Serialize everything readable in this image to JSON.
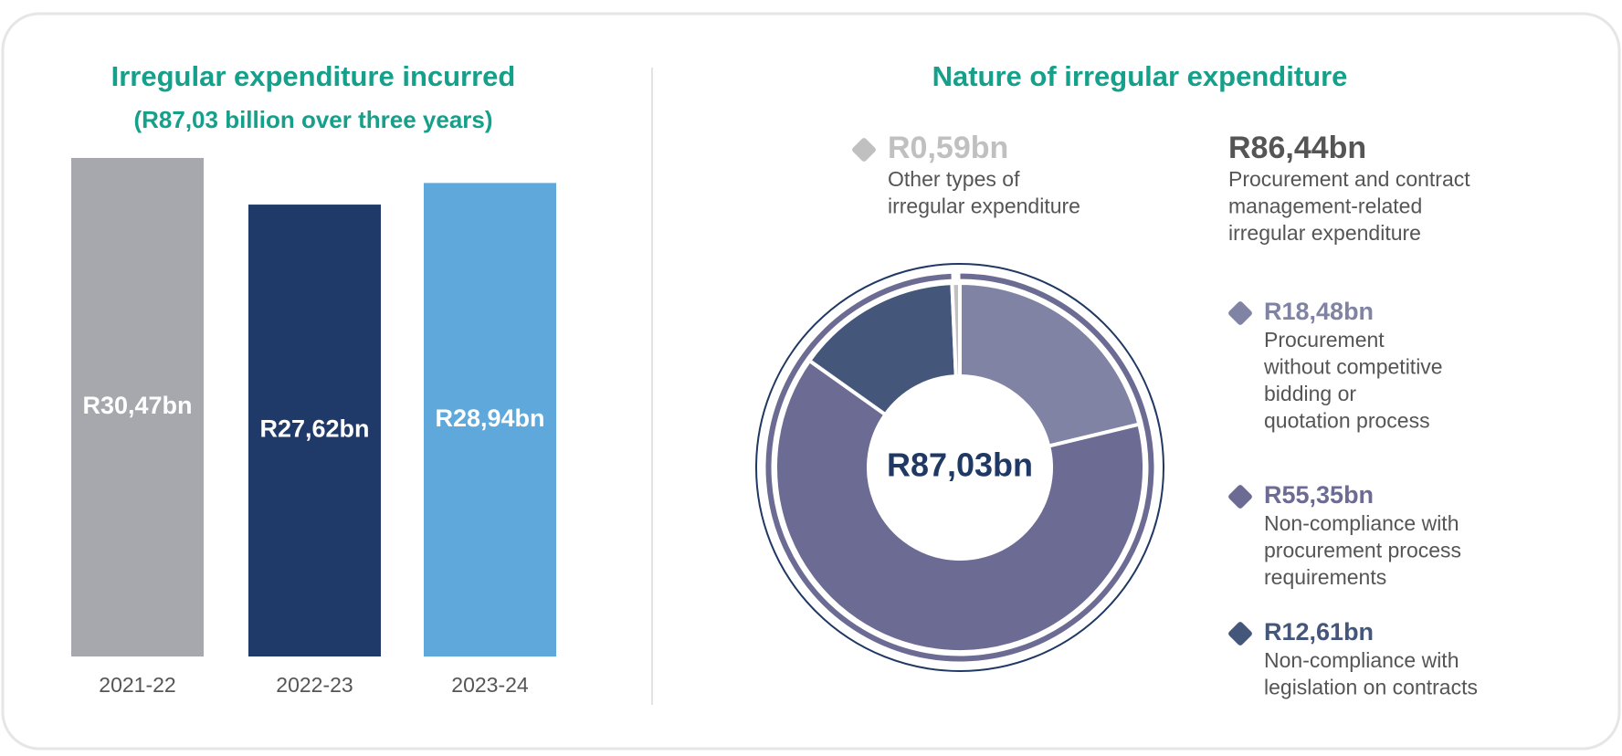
{
  "chart_data": [
    {
      "type": "bar",
      "title": "Irregular expenditure incurred",
      "subtitle": "(R87,03 billion over three years)",
      "categories": [
        "2021-22",
        "2022-23",
        "2023-24"
      ],
      "values": [
        30.47,
        27.62,
        28.94
      ],
      "value_labels": [
        "R30,47bn",
        "R27,62bn",
        "R28,94bn"
      ],
      "colors": [
        "#a7a8ad",
        "#1f3a68",
        "#5ea8dc"
      ]
    },
    {
      "type": "donut",
      "title": "Nature of irregular expenditure",
      "total": 87.03,
      "total_label": "R87,03bn",
      "values": [
        18.48,
        55.35,
        12.61,
        0.59
      ],
      "value_labels": [
        "R18,48bn",
        "R55,35bn",
        "R12,61bn",
        "R0,59bn"
      ],
      "descriptions": [
        [
          "Procurement",
          "without competitive",
          "bidding or",
          "quotation process"
        ],
        [
          "Non-compliance with",
          "procurement process",
          "requirements"
        ],
        [
          "Non-compliance with",
          "legislation on contracts"
        ],
        [
          "Other types of",
          "irregular expenditure"
        ]
      ],
      "colors": [
        "#8083a3",
        "#6b6b94",
        "#44567a",
        "#c0c0c0"
      ],
      "group": {
        "value": 86.44,
        "label": "R86,44bn",
        "color": "#6b6b94",
        "description": [
          "Procurement and contract",
          "management-related",
          "irregular expenditure"
        ]
      }
    }
  ]
}
